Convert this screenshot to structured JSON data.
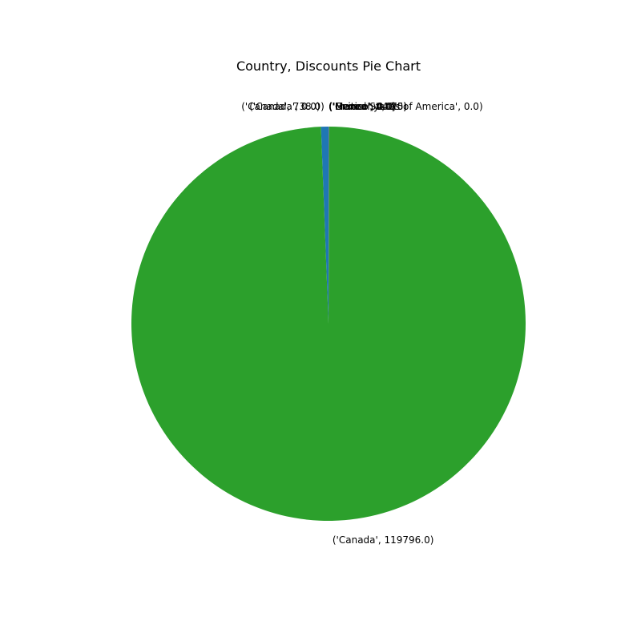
{
  "chart_data": {
    "type": "pie",
    "title": "Country, Discounts Pie Chart",
    "palette": [
      "#1f77b4",
      "#ff7f0e",
      "#2ca02c",
      "#d62728",
      "#9467bd",
      "#8c564b",
      "#e377c2",
      "#7f7f7f",
      "#bcbd22",
      "#17becf"
    ],
    "slices": [
      {
        "label": "('Canada', 738.0)",
        "value": 738.0
      },
      {
        "label": "('Canada', 0.0)",
        "value": 0.0
      },
      {
        "label": "('Canada', 119796.0)",
        "value": 119796.0
      },
      {
        "label": "('France', 0.0)",
        "value": 0.0
      },
      {
        "label": "('France', 44.75)",
        "value": 44.75
      },
      {
        "label": "('Germany', 0.0)",
        "value": 0.0
      },
      {
        "label": "('Mexico', 0.0)",
        "value": 0.0
      },
      {
        "label": "('United States of America', 0.0)",
        "value": 0.0
      }
    ]
  }
}
